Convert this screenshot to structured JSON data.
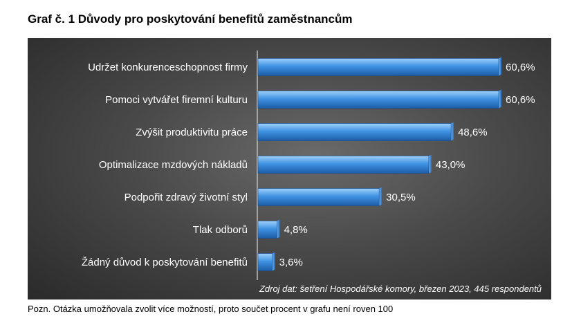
{
  "title": "Graf č. 1 Důvody pro poskytování benefitů zaměstnancům",
  "source": "Zdroj dat: šetření Hospodářské komory, březen 2023, 445 respondentů",
  "note": "Pozn. Otázka umožňovala zvolit více možností, proto součet procent v grafu není roven 100",
  "colors": {
    "bar": "#3d8fe0",
    "bar_light": "#8cc4f5",
    "bar_dark": "#1f5fa8",
    "panel": "#3c3c3c",
    "text": "#ffffff"
  },
  "chart_data": {
    "type": "bar",
    "orientation": "horizontal",
    "categories": [
      "Udržet konkurenceschopnost firmy",
      "Pomoci vytvářet firemní kulturu",
      "Zvýšit produktivitu práce",
      "Optimalizace mzdových nákladů",
      "Podpořit zdravý životní styl",
      "Tlak odborů",
      "Žádný důvod k poskytování benefitů"
    ],
    "values": [
      60.6,
      60.6,
      48.6,
      43.0,
      30.5,
      4.8,
      3.6
    ],
    "value_labels": [
      "60,6%",
      "60,6%",
      "48,6%",
      "43,0%",
      "30,5%",
      "4,8%",
      "3,6%"
    ],
    "unit": "%",
    "xlim": [
      0,
      60.6
    ],
    "grid": false,
    "legend": "none"
  }
}
